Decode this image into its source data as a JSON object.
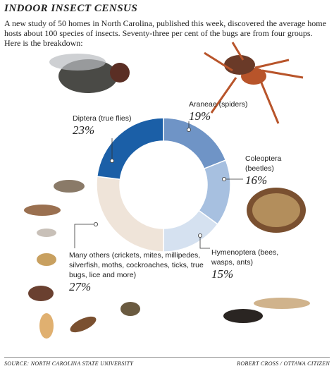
{
  "chart_data": {
    "type": "donut",
    "title": "INDOOR INSECT CENSUS",
    "subtitle": "A new study of 50 homes in North Carolina, published this week, discovered the average home hosts about 100 species of insects. Seventy-three per cent of the bugs are from four groups. Here is the breakdown:",
    "categories": [
      "Araneae (spiders)",
      "Coleoptera (beetles)",
      "Hymenoptera (bees, wasps, ants)",
      "Many others (crickets, mites, millipedes, silverfish, moths, cockroaches, ticks, true bugs, lice and more)",
      "Diptera (true flies)"
    ],
    "values": [
      19,
      16,
      15,
      27,
      23
    ],
    "value_labels": [
      "19%",
      "16%",
      "15%",
      "27%",
      "23%"
    ],
    "colors": [
      "#6f94c6",
      "#a7c0e0",
      "#d5e1f0",
      "#efe4d9",
      "#1b5fa7"
    ],
    "source": "SOURCE: NORTH CAROLINA STATE UNIVERSITY",
    "credit": "ROBERT CROSS / OTTAWA CITIZEN"
  }
}
